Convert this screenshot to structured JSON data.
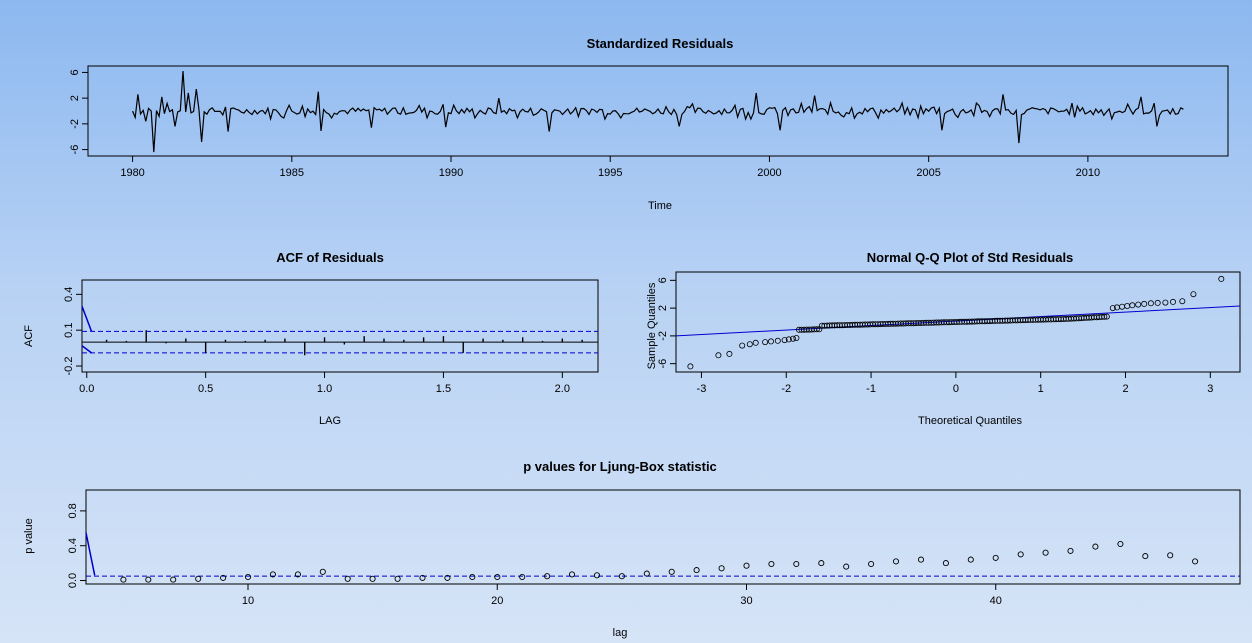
{
  "colors": {
    "line": "#000000",
    "ref": "#0000cc",
    "frame": "#000000"
  },
  "chart_data": [
    {
      "id": "resid",
      "type": "line",
      "title": "Standardized Residuals",
      "xlabel": "Time",
      "ylabel": "",
      "xlim": [
        1978.6,
        2014.4
      ],
      "ylim": [
        -7,
        7
      ],
      "xticks": [
        1980,
        1985,
        1990,
        1995,
        2000,
        2005,
        2010
      ],
      "yticks": [
        -6,
        -2,
        2,
        6
      ],
      "start": 1980.0,
      "end": 2013.0,
      "spikes": [
        {
          "t": 1980.2,
          "v": 2.6
        },
        {
          "t": 1980.4,
          "v": -1.6
        },
        {
          "t": 1980.7,
          "v": -6.4
        },
        {
          "t": 1980.9,
          "v": 2.2
        },
        {
          "t": 1981.3,
          "v": -2.4
        },
        {
          "t": 1981.55,
          "v": 6.2
        },
        {
          "t": 1981.75,
          "v": 2.8
        },
        {
          "t": 1982.0,
          "v": 3.4
        },
        {
          "t": 1982.15,
          "v": -4.8
        },
        {
          "t": 1983.0,
          "v": -3.2
        },
        {
          "t": 1985.8,
          "v": 3.0
        },
        {
          "t": 1985.95,
          "v": -3.1
        },
        {
          "t": 1987.5,
          "v": -2.6
        },
        {
          "t": 1989.8,
          "v": -2.5
        },
        {
          "t": 1991.5,
          "v": 2.0
        },
        {
          "t": 1993.1,
          "v": -3.2
        },
        {
          "t": 1997.2,
          "v": -2.4
        },
        {
          "t": 1999.6,
          "v": 2.8
        },
        {
          "t": 2000.3,
          "v": -3.0
        },
        {
          "t": 2001.4,
          "v": 2.4
        },
        {
          "t": 2005.4,
          "v": -3.0
        },
        {
          "t": 2007.3,
          "v": 2.6
        },
        {
          "t": 2007.8,
          "v": -5.0
        },
        {
          "t": 2011.7,
          "v": 2.2
        },
        {
          "t": 2012.2,
          "v": -2.4
        }
      ]
    },
    {
      "id": "acf",
      "type": "bar",
      "title": "ACF of Residuals",
      "xlabel": "LAG",
      "ylabel": "ACF",
      "xlim": [
        -0.02,
        2.15
      ],
      "ylim": [
        -0.25,
        0.52
      ],
      "xticks": [
        0.0,
        0.5,
        1.0,
        1.5,
        2.0
      ],
      "yticks": [
        -0.2,
        0.1,
        0.4
      ],
      "ci": 0.09,
      "lags": [
        0.0833,
        0.1667,
        0.25,
        0.3333,
        0.4167,
        0.5,
        0.5833,
        0.6667,
        0.75,
        0.8333,
        0.9167,
        1.0,
        1.0833,
        1.1667,
        1.25,
        1.3333,
        1.4167,
        1.5,
        1.5833,
        1.6667,
        1.75,
        1.8333,
        1.9167,
        2.0,
        2.0833
      ],
      "values": [
        0.02,
        0.01,
        0.1,
        -0.01,
        0.03,
        -0.09,
        0.02,
        0.01,
        0.02,
        0.03,
        -0.11,
        0.04,
        -0.02,
        0.05,
        0.03,
        0.02,
        0.04,
        0.05,
        -0.09,
        0.03,
        0.02,
        0.04,
        0.01,
        0.03,
        0.02
      ]
    },
    {
      "id": "qq",
      "type": "scatter",
      "title": "Normal Q-Q Plot of Std Residuals",
      "xlabel": "Theoretical Quantiles",
      "ylabel": "Sample Quantiles",
      "xlim": [
        -3.3,
        3.35
      ],
      "ylim": [
        -7.2,
        7.2
      ],
      "xticks": [
        -3,
        -2,
        -1,
        0,
        1,
        2,
        3
      ],
      "yticks": [
        -6,
        -2,
        2,
        6
      ],
      "line": [
        [
          -3.3,
          -2.0
        ],
        [
          3.35,
          2.3
        ]
      ],
      "tail_points": [
        [
          -3.13,
          -6.4
        ],
        [
          -2.8,
          -4.8
        ],
        [
          -2.67,
          -4.6
        ],
        [
          -2.52,
          -3.4
        ],
        [
          -2.43,
          -3.2
        ],
        [
          -2.36,
          -3.0
        ],
        [
          -2.25,
          -2.9
        ],
        [
          -2.18,
          -2.8
        ],
        [
          -2.1,
          -2.7
        ],
        [
          -2.02,
          -2.6
        ],
        [
          -1.97,
          -2.5
        ],
        [
          -1.92,
          -2.4
        ],
        [
          -1.88,
          -2.3
        ],
        [
          1.85,
          2.0
        ],
        [
          1.9,
          2.1
        ],
        [
          1.96,
          2.2
        ],
        [
          2.02,
          2.3
        ],
        [
          2.08,
          2.4
        ],
        [
          2.15,
          2.5
        ],
        [
          2.22,
          2.6
        ],
        [
          2.3,
          2.7
        ],
        [
          2.38,
          2.75
        ],
        [
          2.47,
          2.8
        ],
        [
          2.56,
          2.9
        ],
        [
          2.67,
          3.0
        ],
        [
          2.8,
          4.0
        ],
        [
          3.13,
          6.2
        ]
      ]
    },
    {
      "id": "ljung",
      "type": "scatter",
      "title": "p values for Ljung-Box statistic",
      "xlabel": "lag",
      "ylabel": "p value",
      "xlim": [
        3.5,
        49.8
      ],
      "ylim": [
        -0.04,
        1.04
      ],
      "xticks": [
        10,
        20,
        30,
        40
      ],
      "yticks": [
        0.0,
        0.4,
        0.8
      ],
      "sig": 0.05,
      "lags": [
        5,
        6,
        7,
        8,
        9,
        10,
        11,
        12,
        13,
        14,
        15,
        16,
        17,
        18,
        19,
        20,
        21,
        22,
        23,
        24,
        25,
        26,
        27,
        28,
        29,
        30,
        31,
        32,
        33,
        34,
        35,
        36,
        37,
        38,
        39,
        40,
        41,
        42,
        43,
        44,
        45,
        46,
        47,
        48
      ],
      "values": [
        0.01,
        0.01,
        0.01,
        0.02,
        0.03,
        0.04,
        0.07,
        0.07,
        0.1,
        0.02,
        0.02,
        0.02,
        0.03,
        0.03,
        0.04,
        0.04,
        0.04,
        0.05,
        0.07,
        0.06,
        0.05,
        0.08,
        0.1,
        0.12,
        0.14,
        0.17,
        0.19,
        0.19,
        0.2,
        0.16,
        0.19,
        0.22,
        0.24,
        0.2,
        0.24,
        0.26,
        0.3,
        0.32,
        0.34,
        0.39,
        0.42,
        0.28,
        0.29,
        0.22
      ]
    }
  ]
}
